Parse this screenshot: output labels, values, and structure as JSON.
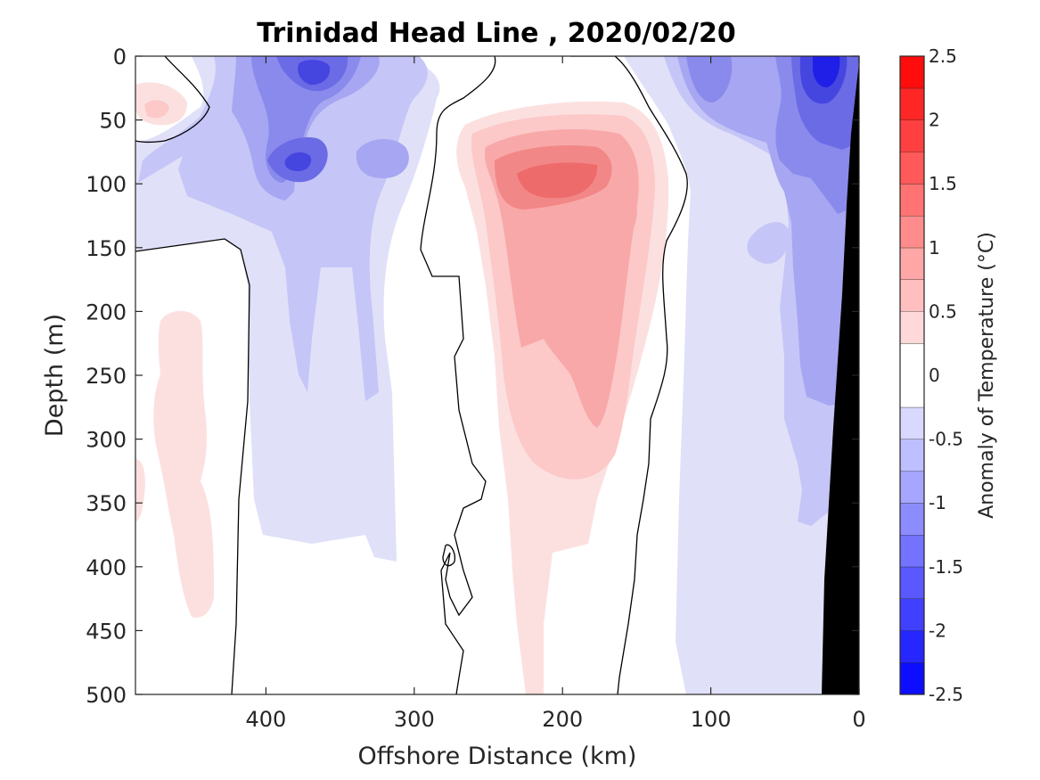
{
  "chart_data": {
    "type": "heatmap",
    "title": "Trinidad Head Line , 2020/02/20",
    "xlabel": "Offshore Distance (km)",
    "ylabel": "Depth (m)",
    "x_reversed": true,
    "y_reversed": true,
    "xlim": [
      0,
      488
    ],
    "ylim": [
      0,
      500
    ],
    "x_ticks": [
      "400",
      "300",
      "200",
      "100",
      "0"
    ],
    "x_tick_values": [
      400,
      300,
      200,
      100,
      0
    ],
    "y_ticks": [
      "0",
      "50",
      "100",
      "150",
      "200",
      "250",
      "300",
      "350",
      "400",
      "450",
      "500"
    ],
    "y_tick_values": [
      0,
      50,
      100,
      150,
      200,
      250,
      300,
      350,
      400,
      450,
      500
    ],
    "colorbar": {
      "label": "Anomaly of Temperature (°C)",
      "range": [
        -2.5,
        2.5
      ],
      "ticks": [
        "2.5",
        "2",
        "1.5",
        "1",
        "0.5",
        "0",
        "-0.5",
        "-1",
        "-1.5",
        "-2",
        "-2.5"
      ],
      "tick_values": [
        2.5,
        2,
        1.5,
        1,
        0.5,
        0,
        -0.5,
        -1,
        -1.5,
        -2,
        -2.5
      ],
      "levels": [
        -2.5,
        -2.25,
        -2.0,
        -1.75,
        -1.5,
        -1.25,
        -1.0,
        -0.75,
        -0.5,
        -0.25,
        0.25,
        0.5,
        0.75,
        1.0,
        1.25,
        1.5,
        1.75,
        2.0,
        2.25,
        2.5
      ],
      "colormap": "blue-white-red diverging"
    },
    "zero_contour": "black line",
    "bathymetry_color": "#000000",
    "features": [
      {
        "kind": "cold core",
        "x_range_km": [
          345,
          400
        ],
        "depth_range_m": [
          0,
          40
        ],
        "anomaly_min": -1.25
      },
      {
        "kind": "cold core",
        "x_range_km": [
          360,
          390
        ],
        "depth_range_m": [
          60,
          100
        ],
        "anomaly_min": -1.75
      },
      {
        "kind": "cold patch",
        "x_range_km": [
          300,
          335
        ],
        "depth_range_m": [
          65,
          100
        ],
        "anomaly_min": -0.75
      },
      {
        "kind": "warm core",
        "x_range_km": [
          120,
          270
        ],
        "depth_range_m": [
          50,
          500
        ],
        "anomaly_max": 1.5
      },
      {
        "kind": "cold core",
        "x_range_km": [
          10,
          40
        ],
        "depth_range_m": [
          0,
          50
        ],
        "anomaly_min": -2.0
      },
      {
        "kind": "cold band",
        "x_range_km": [
          15,
          130
        ],
        "depth_range_m": [
          0,
          500
        ],
        "anomaly_min": -1.0
      },
      {
        "kind": "weak warm patch",
        "x_range_km": [
          430,
          475
        ],
        "depth_range_m": [
          200,
          440
        ],
        "anomaly_max": 0.5
      },
      {
        "kind": "weak warm patch",
        "x_range_km": [
          448,
          488
        ],
        "depth_range_m": [
          25,
          65
        ],
        "anomaly_max": 0.5
      }
    ]
  }
}
